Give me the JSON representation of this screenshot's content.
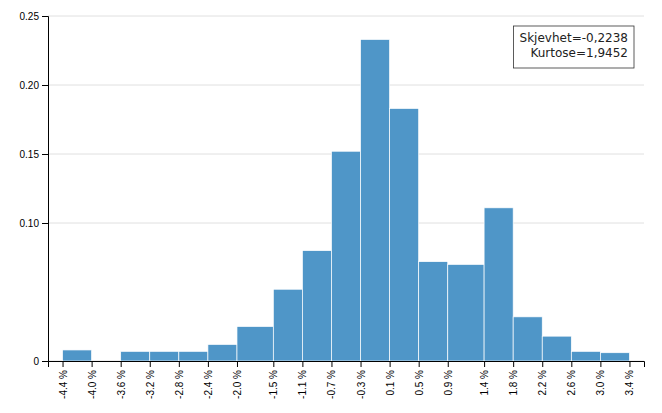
{
  "chart_data": {
    "type": "histogram",
    "bins": [
      -4.4,
      -4.0,
      -3.6,
      -3.2,
      -2.8,
      -2.4,
      -2.0,
      -1.5,
      -1.1,
      -0.7,
      -0.3,
      0.1,
      0.5,
      0.9,
      1.4,
      1.8,
      2.2,
      2.6,
      3.0,
      3.4
    ],
    "values": [
      0.008,
      0.0,
      0.007,
      0.007,
      0.007,
      0.012,
      0.025,
      0.052,
      0.08,
      0.152,
      0.233,
      0.183,
      0.072,
      0.07,
      0.111,
      0.032,
      0.018,
      0.007,
      0.006
    ],
    "color": "#4f96c8",
    "xlim": [
      -4.6,
      3.6
    ],
    "xticks": [
      {
        "value": -4.4,
        "label": "-4.4 %"
      },
      {
        "value": -4.0,
        "label": "-4.0 %"
      },
      {
        "value": -3.6,
        "label": "-3.6 %"
      },
      {
        "value": -3.2,
        "label": "-3.2 %"
      },
      {
        "value": -2.8,
        "label": "-2.8 %"
      },
      {
        "value": -2.4,
        "label": "-2.4 %"
      },
      {
        "value": -2.0,
        "label": "-2.0 %"
      },
      {
        "value": -1.5,
        "label": "-1.5 %"
      },
      {
        "value": -1.1,
        "label": "-1.1 %"
      },
      {
        "value": -0.7,
        "label": "-0.7 %"
      },
      {
        "value": -0.3,
        "label": "-0.3 %"
      },
      {
        "value": 0.1,
        "label": "0.1 %"
      },
      {
        "value": 0.5,
        "label": "0.5 %"
      },
      {
        "value": 0.9,
        "label": "0.9 %"
      },
      {
        "value": 1.4,
        "label": "1.4 %"
      },
      {
        "value": 1.8,
        "label": "1.8 %"
      },
      {
        "value": 2.2,
        "label": "2.2 %"
      },
      {
        "value": 2.6,
        "label": "2.6 %"
      },
      {
        "value": 3.0,
        "label": "3.0 %"
      },
      {
        "value": 3.4,
        "label": "3.4 %"
      }
    ],
    "ylim": [
      0,
      0.25
    ],
    "yticks": [
      0,
      {
        "value": 0.1,
        "label": "0.10"
      },
      0.15,
      {
        "value": 0.2,
        "label": "0.20"
      },
      0.25
    ],
    "grid": true,
    "annotations": [
      "Skjevhet=-0,2238",
      "Kurtose=1,9452"
    ]
  }
}
